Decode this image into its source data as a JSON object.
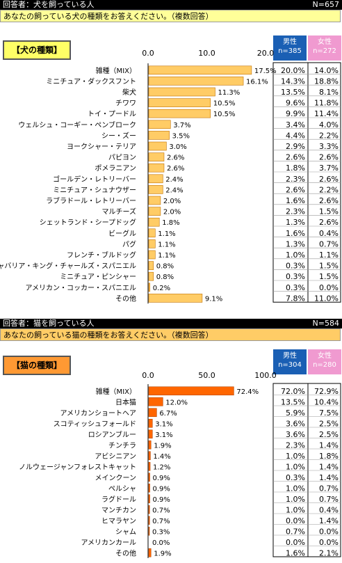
{
  "panels": [
    {
      "header_left": "回答者：犬を飼っている人",
      "header_right": "N=657",
      "question": "あなたの飼っている犬の種類をお答えください。（複数回答）",
      "badge": "【犬の種類】",
      "male_label": "男性",
      "male_n": "n=385",
      "female_label": "女性",
      "female_n": "n=272",
      "colors": {
        "question_bg": "#ffff99",
        "badge_bg": "#ffff66",
        "bar": "#ffcc66",
        "bar_stroke": "#c07000",
        "male": "#1a5fb4",
        "female": "#f09ad0",
        "header_bg": "#000000"
      }
    },
    {
      "header_left": "回答者：猫を飼っている人",
      "header_right": "N=584",
      "question": "あなたの飼っている猫の種類をお答えください。（複数回答）",
      "badge": "【猫の種類】",
      "male_label": "男性",
      "male_n": "n=304",
      "female_label": "女性",
      "female_n": "n=280",
      "colors": {
        "question_bg": "#ffcc66",
        "badge_bg": "#ff9933",
        "bar": "#ff6600",
        "bar_stroke": "#b34700",
        "male": "#1a5fb4",
        "female": "#f09ad0",
        "header_bg": "#000000"
      }
    }
  ],
  "chart_data": [
    {
      "type": "bar",
      "orientation": "horizontal",
      "title": "【犬の種類】",
      "xlim": [
        0,
        20
      ],
      "ticks": [
        "0.0",
        "10.0",
        "20.0"
      ],
      "tick_values": [
        0,
        10,
        20
      ],
      "categories": [
        "雑種（MIX）",
        "ミニチュア・ダックスフント",
        "柴犬",
        "チワワ",
        "トイ・プードル",
        "ウェルシュ・コーギー・ペンブローク",
        "シー・ズー",
        "ヨークシャー・テリア",
        "パピヨン",
        "ポメラニアン",
        "ゴールデン・レトリーバー",
        "ミニチュア・シュナウザー",
        "ラブラドール・レトリーバー",
        "マルチーズ",
        "シェットランド・シープドッグ",
        "ビーグル",
        "パグ",
        "フレンチ・ブルドッグ",
        "キャバリア・キング・チャールズ・スパニエル",
        "ミニチュア・ピンシャー",
        "アメリカン・コッカー・スパニエル",
        "その他"
      ],
      "values": [
        17.5,
        16.1,
        11.3,
        10.5,
        10.5,
        3.7,
        3.5,
        3.0,
        2.6,
        2.6,
        2.4,
        2.4,
        2.0,
        2.0,
        1.8,
        1.1,
        1.1,
        1.1,
        0.8,
        0.8,
        0.2,
        9.1
      ],
      "value_labels": [
        "17.5%",
        "16.1%",
        "11.3%",
        "10.5%",
        "10.5%",
        "3.7%",
        "3.5%",
        "3.0%",
        "2.6%",
        "2.6%",
        "2.4%",
        "2.4%",
        "2.0%",
        "2.0%",
        "1.8%",
        "1.1%",
        "1.1%",
        "1.1%",
        "0.8%",
        "0.8%",
        "0.2%",
        "9.1%"
      ],
      "male": [
        "20.0%",
        "14.3%",
        "13.5%",
        "9.6%",
        "9.9%",
        "3.4%",
        "4.4%",
        "2.9%",
        "2.6%",
        "1.8%",
        "2.3%",
        "2.6%",
        "1.6%",
        "2.3%",
        "1.3%",
        "1.6%",
        "1.3%",
        "1.0%",
        "0.3%",
        "0.3%",
        "0.3%",
        "7.8%"
      ],
      "female": [
        "14.0%",
        "18.8%",
        "8.1%",
        "11.8%",
        "11.4%",
        "4.0%",
        "2.2%",
        "3.3%",
        "2.6%",
        "3.7%",
        "2.6%",
        "2.2%",
        "2.6%",
        "1.5%",
        "2.6%",
        "0.4%",
        "0.7%",
        "1.1%",
        "1.5%",
        "1.5%",
        "0.0%",
        "11.0%"
      ]
    },
    {
      "type": "bar",
      "orientation": "horizontal",
      "title": "【猫の種類】",
      "xlim": [
        0,
        100
      ],
      "ticks": [
        "0.0",
        "50.0",
        "100.0"
      ],
      "tick_values": [
        0,
        50,
        100
      ],
      "categories": [
        "雑種（MIX）",
        "日本猫",
        "アメリカンショートヘア",
        "スコティッシュフォールド",
        "ロシアンブルー",
        "チンチラ",
        "アビシニアン",
        "ノルウェージャンフォレストキャット",
        "メインクーン",
        "ペルシャ",
        "ラグドール",
        "マンチカン",
        "ヒマラヤン",
        "シャム",
        "アメリカンカール",
        "その他"
      ],
      "values": [
        72.4,
        12.0,
        6.7,
        3.1,
        3.1,
        1.9,
        1.4,
        1.2,
        0.9,
        0.9,
        0.9,
        0.7,
        0.7,
        0.3,
        0.0,
        1.9
      ],
      "value_labels": [
        "72.4%",
        "12.0%",
        "6.7%",
        "3.1%",
        "3.1%",
        "1.9%",
        "1.4%",
        "1.2%",
        "0.9%",
        "0.9%",
        "0.9%",
        "0.7%",
        "0.7%",
        "0.3%",
        "0.0%",
        "1.9%"
      ],
      "male": [
        "72.0%",
        "13.5%",
        "5.9%",
        "3.6%",
        "3.6%",
        "2.3%",
        "1.0%",
        "1.0%",
        "0.3%",
        "1.0%",
        "1.0%",
        "1.0%",
        "0.0%",
        "0.7%",
        "0.0%",
        "1.6%"
      ],
      "female": [
        "72.9%",
        "10.4%",
        "7.5%",
        "2.5%",
        "2.5%",
        "1.4%",
        "1.8%",
        "1.4%",
        "1.4%",
        "0.7%",
        "0.7%",
        "0.4%",
        "1.4%",
        "0.0%",
        "0.0%",
        "2.1%"
      ]
    }
  ]
}
